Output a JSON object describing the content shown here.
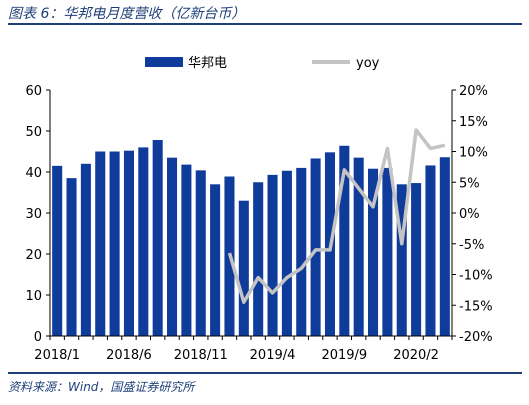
{
  "header": {
    "title": "图表 6：华邦电月度营收（亿新台币）"
  },
  "footer": {
    "source": "资料来源：Wind，国盛证券研究所"
  },
  "colors": {
    "bar": "#0f3b9a",
    "line": "#c4c4c4",
    "text": "#000000",
    "title": "#1f3f7a"
  },
  "chart_data": {
    "type": "bar",
    "title": "",
    "categories": [
      "2018/1",
      "2018/2",
      "2018/3",
      "2018/4",
      "2018/5",
      "2018/6",
      "2018/7",
      "2018/8",
      "2018/9",
      "2018/10",
      "2018/11",
      "2018/12",
      "2019/1",
      "2019/2",
      "2019/3",
      "2019/4",
      "2019/5",
      "2019/6",
      "2019/7",
      "2019/8",
      "2019/9",
      "2019/10",
      "2019/11",
      "2019/12",
      "2020/1",
      "2020/2",
      "2020/3",
      "2020/4"
    ],
    "x_tick_labels": [
      "2018/1",
      "2018/6",
      "2018/11",
      "2019/4",
      "2019/9",
      "2020/2"
    ],
    "x_tick_indices": [
      0,
      5,
      10,
      15,
      20,
      25
    ],
    "series": [
      {
        "name": "华邦电",
        "type": "bar",
        "axis": "left",
        "values": [
          41.5,
          38.5,
          42,
          45,
          45,
          45.2,
          46,
          47.8,
          43.5,
          41.8,
          40.4,
          37,
          38.9,
          33,
          37.5,
          39.3,
          40.3,
          41,
          43.3,
          44.8,
          46.4,
          43.5,
          40.8,
          41,
          37,
          37.3,
          41.6,
          43.6
        ]
      },
      {
        "name": "yoy",
        "type": "line",
        "axis": "right",
        "values": [
          null,
          null,
          null,
          null,
          null,
          null,
          null,
          null,
          null,
          null,
          null,
          null,
          -6.5,
          -14.5,
          -10.5,
          -13,
          -10.5,
          -9,
          -6,
          -6,
          7,
          4,
          1,
          10.5,
          -5,
          13.5,
          10.5,
          11
        ]
      }
    ],
    "y_left": {
      "min": 0,
      "max": 60,
      "ticks": [
        "0",
        "10",
        "20",
        "30",
        "40",
        "50",
        "60"
      ]
    },
    "y_right": {
      "min": -20,
      "max": 20,
      "ticks": [
        "-20%",
        "-15%",
        "-10%",
        "-5%",
        "0%",
        "5%",
        "10%",
        "15%",
        "20%"
      ]
    },
    "legend": {
      "position": "top",
      "items": [
        "华邦电",
        "yoy"
      ]
    },
    "grid": false
  }
}
